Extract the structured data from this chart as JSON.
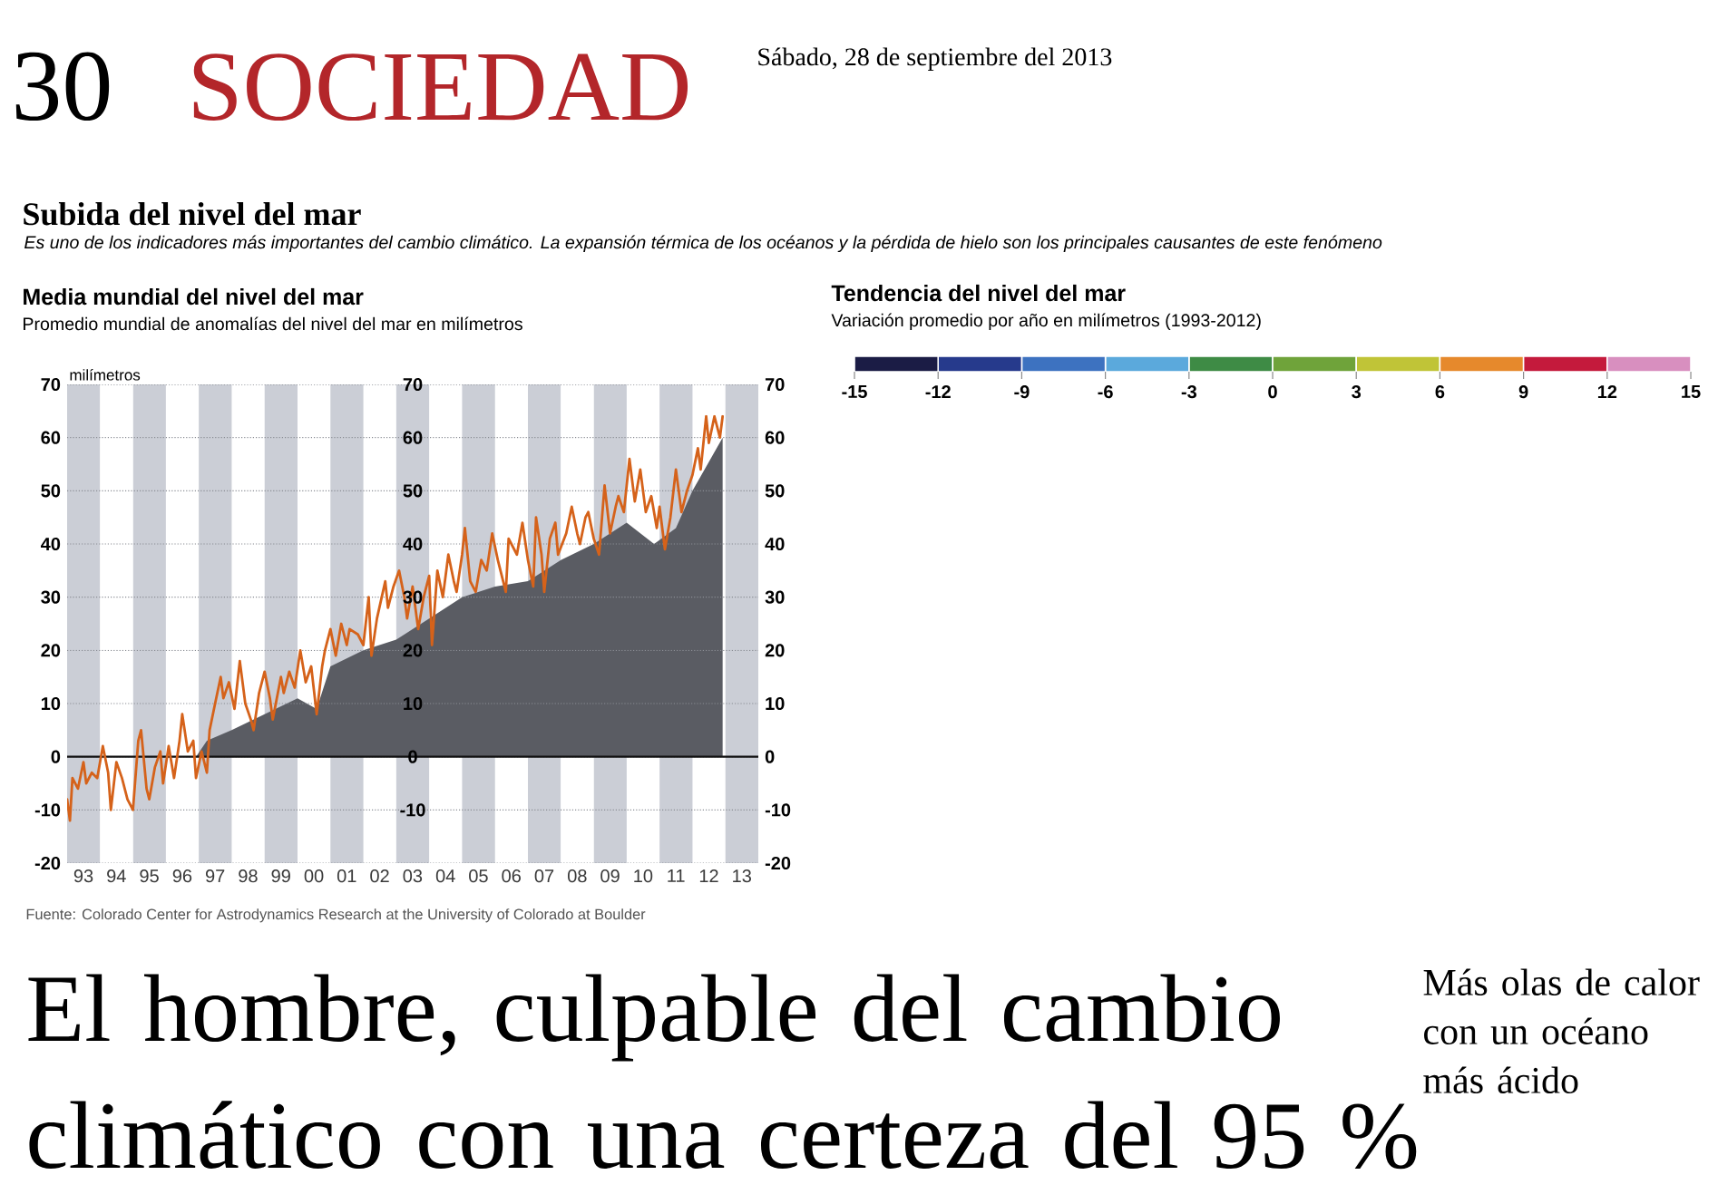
{
  "chart_data": [
    {
      "type": "line",
      "title": "Media mundial del nivel del mar",
      "subtitle": "Promedio mundial de anomalías del nivel del mar en milímetros",
      "ylabel": "milímetros",
      "xlim": [
        "1993",
        "2014"
      ],
      "xticks": [
        {
          "value": "1993-07",
          "label": "93"
        },
        {
          "value": "1994-07",
          "label": "94"
        },
        {
          "value": "1995-07",
          "label": "95"
        },
        {
          "value": "1996-07",
          "label": "96"
        },
        {
          "value": "1997-07",
          "label": "97"
        },
        {
          "value": "1998-07",
          "label": "98"
        },
        {
          "value": "1999-07",
          "label": "99"
        },
        {
          "value": "2000-07",
          "label": "00"
        },
        {
          "value": "2001-07",
          "label": "01"
        },
        {
          "value": "2002-07",
          "label": "02"
        },
        {
          "value": "2003-07",
          "label": "03"
        },
        {
          "value": "2004-07",
          "label": "04"
        },
        {
          "value": "2005-07",
          "label": "05"
        },
        {
          "value": "2006-07",
          "label": "06"
        },
        {
          "value": "2007-07",
          "label": "07"
        },
        {
          "value": "2008-07",
          "label": "08"
        },
        {
          "value": "2009-07",
          "label": "09"
        },
        {
          "value": "2010-07",
          "label": "10"
        },
        {
          "value": "2011-07",
          "label": "11"
        },
        {
          "value": "2012-07",
          "label": "12"
        },
        {
          "value": "2013-07",
          "label": "13"
        }
      ],
      "ylim": [
        -20,
        70
      ],
      "yticks": [
        -20,
        -10,
        0,
        10,
        20,
        30,
        40,
        50,
        60,
        70
      ],
      "y2lim": [
        -20,
        70
      ],
      "y2ticks": [
        -20,
        -10,
        0,
        10,
        20,
        30,
        40,
        50,
        60,
        70
      ],
      "y3lim": [
        -20,
        70
      ],
      "y3ticks": [
        -10,
        0,
        10,
        20,
        30,
        40,
        50,
        60,
        70
      ],
      "grid": "y",
      "bands": [
        {
          "axis": "x",
          "from": "1993",
          "to": "1994",
          "color": "#cbced6"
        },
        {
          "axis": "x",
          "from": "1995",
          "to": "1996",
          "color": "#cbced6"
        },
        {
          "axis": "x",
          "from": "1997",
          "to": "1998",
          "color": "#cbced6"
        },
        {
          "axis": "x",
          "from": "1999",
          "to": "2000",
          "color": "#cbced6"
        },
        {
          "axis": "x",
          "from": "2001",
          "to": "2002",
          "color": "#cbced6"
        },
        {
          "axis": "x",
          "from": "2003",
          "to": "2004",
          "color": "#cbced6"
        },
        {
          "axis": "x",
          "from": "2005",
          "to": "2006",
          "color": "#cbced6"
        },
        {
          "axis": "x",
          "from": "2007",
          "to": "2008",
          "color": "#cbced6"
        },
        {
          "axis": "x",
          "from": "2009",
          "to": "2010",
          "color": "#cbced6"
        },
        {
          "axis": "x",
          "from": "2011",
          "to": "2012",
          "color": "#cbced6"
        },
        {
          "axis": "x",
          "from": "2013",
          "to": "2014",
          "color": "#cbced6"
        }
      ],
      "ref_lines": [
        {
          "axis": "y",
          "value": 0,
          "color": "#111111"
        }
      ],
      "series": [
        {
          "type": "area",
          "color": "#5a5c63",
          "x": [
            "1996-12",
            "1997-04",
            "1998-01",
            "1999-01",
            "2000-01",
            "2000-08",
            "2001-01",
            "2002-01",
            "2003-01",
            "2004-01",
            "2005-01",
            "2006-01",
            "2007-01",
            "2008-01",
            "2009-01",
            "2010-01",
            "2010-11",
            "2011-07",
            "2012-01",
            "2012-12"
          ],
          "values": [
            0,
            3,
            5,
            8,
            11,
            9,
            17,
            20,
            22,
            26,
            30,
            32,
            33,
            37,
            40,
            44,
            40,
            43,
            50,
            60
          ]
        },
        {
          "type": "line",
          "color": "#d5621a",
          "x": [
            "1993-01",
            "1993-02",
            "1993-03",
            "1993-05",
            "1993-07",
            "1993-08",
            "1993-10",
            "1993-12",
            "1994-02",
            "1994-04",
            "1994-05",
            "1994-07",
            "1994-09",
            "1994-11",
            "1995-01",
            "1995-03",
            "1995-04",
            "1995-06",
            "1995-07",
            "1995-09",
            "1995-11",
            "1995-12",
            "1996-02",
            "1996-04",
            "1996-06",
            "1996-07",
            "1996-09",
            "1996-11",
            "1996-12",
            "1997-02",
            "1997-04",
            "1997-05",
            "1997-07",
            "1997-09",
            "1997-10",
            "1997-12",
            "1998-02",
            "1998-04",
            "1998-06",
            "1998-08",
            "1998-09",
            "1998-11",
            "1999-01",
            "1999-03",
            "1999-04",
            "1999-07",
            "1999-08",
            "1999-10",
            "1999-12",
            "2000-02",
            "2000-04",
            "2000-06",
            "2000-08",
            "2000-10",
            "2000-11",
            "2001-01",
            "2001-03",
            "2001-05",
            "2001-07",
            "2001-08",
            "2001-11",
            "2002-01",
            "2002-03",
            "2002-04",
            "2002-06",
            "2002-09",
            "2002-10",
            "2002-12",
            "2003-02",
            "2003-04",
            "2003-05",
            "2003-07",
            "2003-09",
            "2003-11",
            "2004-01",
            "2004-02",
            "2004-04",
            "2004-06",
            "2004-08",
            "2004-10",
            "2004-11",
            "2005-01",
            "2005-02",
            "2005-04",
            "2005-06",
            "2005-08",
            "2005-10",
            "2005-12",
            "2006-02",
            "2006-05",
            "2006-06",
            "2006-09",
            "2006-11",
            "2007-01",
            "2007-03",
            "2007-04",
            "2007-06",
            "2007-07",
            "2007-09",
            "2007-11",
            "2007-12",
            "2008-03",
            "2008-05",
            "2008-07",
            "2008-08",
            "2008-10",
            "2008-11",
            "2009-01",
            "2009-03",
            "2009-05",
            "2009-07",
            "2009-09",
            "2009-10",
            "2009-12",
            "2010-02",
            "2010-04",
            "2010-06",
            "2010-08",
            "2010-10",
            "2010-12",
            "2011-01",
            "2011-03",
            "2011-05",
            "2011-07",
            "2011-09",
            "2011-11",
            "2012-01",
            "2012-03",
            "2012-04",
            "2012-06",
            "2012-07",
            "2012-09",
            "2012-11",
            "2012-12"
          ],
          "values": [
            -8,
            -12,
            -4,
            -6,
            -1,
            -5,
            -3,
            -4,
            2,
            -3,
            -10,
            -1,
            -4,
            -8,
            -10,
            3,
            5,
            -6,
            -8,
            -2,
            1,
            -5,
            2,
            -4,
            3,
            8,
            1,
            3,
            -4,
            1,
            -3,
            5,
            10,
            15,
            11,
            14,
            9,
            18,
            10,
            7,
            5,
            12,
            16,
            11,
            7,
            15,
            12,
            16,
            13,
            20,
            14,
            17,
            8,
            17,
            20,
            24,
            19,
            25,
            21,
            24,
            23,
            21,
            30,
            19,
            26,
            33,
            28,
            32,
            35,
            30,
            26,
            32,
            24,
            30,
            34,
            21,
            35,
            30,
            38,
            33,
            31,
            38,
            43,
            33,
            31,
            37,
            35,
            42,
            37,
            31,
            41,
            38,
            44,
            37,
            32,
            45,
            38,
            31,
            41,
            44,
            38,
            42,
            47,
            42,
            40,
            45,
            46,
            41,
            38,
            51,
            42,
            47,
            49,
            46,
            56,
            48,
            54,
            46,
            49,
            43,
            47,
            39,
            45,
            54,
            46,
            50,
            53,
            58,
            54,
            64,
            59,
            64,
            60,
            64
          ]
        }
      ],
      "annotations": [
        "30",
        "SOCIEDAD",
        "Sábado, 28 de septiembre del 2013",
        "Subida del nivel del mar",
        "Es uno de los indicadores más importantes del cambio climático. La expansión térmica de los océanos y la pérdida de hielo son los principales causantes de este fenómeno",
        "Fuente: Colorado Center for Astrodynamics Research at the University of Colorado at Boulder",
        "El hombre, culpable del cambio climático con una certeza del 95 %",
        "Más olas de calor con un océano más ácido"
      ]
    },
    {
      "type": "bar",
      "title": "Tendencia del nivel del mar",
      "subtitle": "Variación promedio por año en milímetros (1993-2012)",
      "orientation": "horizontal",
      "stacked": true,
      "categories": [
        null
      ],
      "xlim": [
        -15,
        15
      ],
      "xticks": [
        -15,
        -12,
        -9,
        -6,
        -3,
        0,
        3,
        6,
        9,
        12,
        15
      ],
      "series": [
        {
          "color": "#3e8b45",
          "values": [
            -3
          ]
        },
        {
          "color": "#5ba9dc",
          "values": [
            -3
          ]
        },
        {
          "color": "#3d72c0",
          "values": [
            -3
          ]
        },
        {
          "color": "#263a8c",
          "values": [
            -3
          ]
        },
        {
          "color": "#1b1c45",
          "values": [
            -3
          ]
        },
        {
          "color": "#6fa33a",
          "values": [
            3
          ]
        },
        {
          "color": "#c0c437",
          "values": [
            3
          ]
        },
        {
          "color": "#e6892c",
          "values": [
            3
          ]
        },
        {
          "color": "#c41a3c",
          "values": [
            3
          ]
        },
        {
          "color": "#d88fbf",
          "values": [
            3
          ]
        }
      ]
    }
  ]
}
